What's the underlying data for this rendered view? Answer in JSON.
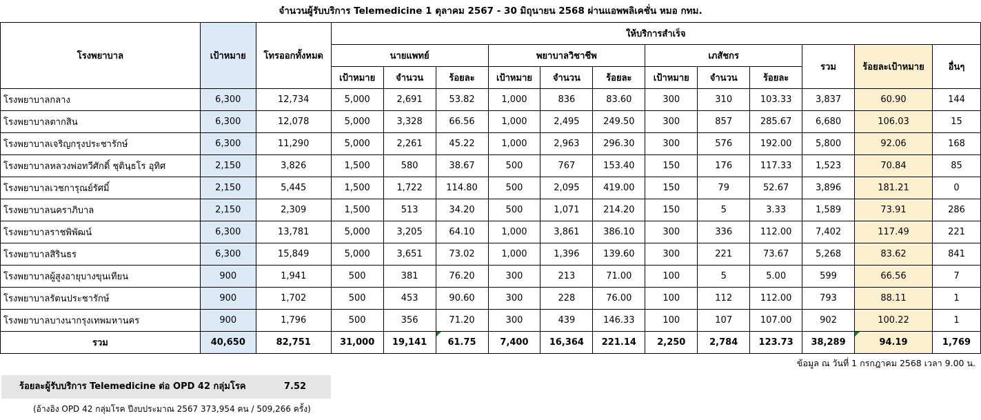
{
  "title": "จำนวนผู้รับบริการ Telemedicine 1 ตุลาคม 2567 - 30 มิถุนายน 2568 ผ่านแอพพลิเคชั่น หมอ กทม.",
  "headers": {
    "hospital": "โรงพยาบาล",
    "target": "เป้าหมาย",
    "total_calls": "โทรออกทั้งหมด",
    "success": "ให้บริการสำเร็จ",
    "doctor": "นายแพทย์",
    "nurse": "พยาบาลวิชาชีพ",
    "pharmacist": "เภสัชกร",
    "sub_target": "เป้าหมาย",
    "sub_count": "จำนวน",
    "sub_percent": "ร้อยละ",
    "sum": "รวม",
    "percent_target": "ร้อยละเป้าหมาย",
    "others": "อื่นๆ"
  },
  "rows": [
    [
      "โรงพยาบาลกลาง",
      "6,300",
      "12,734",
      "5,000",
      "2,691",
      "53.82",
      "1,000",
      "836",
      "83.60",
      "300",
      "310",
      "103.33",
      "3,837",
      "60.90",
      "144"
    ],
    [
      "โรงพยาบาลตากสิน",
      "6,300",
      "12,078",
      "5,000",
      "3,328",
      "66.56",
      "1,000",
      "2,495",
      "249.50",
      "300",
      "857",
      "285.67",
      "6,680",
      "106.03",
      "15"
    ],
    [
      "โรงพยาบาลเจริญกรุงประชารักษ์",
      "6,300",
      "11,290",
      "5,000",
      "2,261",
      "45.22",
      "1,000",
      "2,963",
      "296.30",
      "300",
      "576",
      "192.00",
      "5,800",
      "92.06",
      "168"
    ],
    [
      "โรงพยาบาลหลวงพ่อทวีศักดิ์ ชุตินฺธโร อุทิศ",
      "2,150",
      "3,826",
      "1,500",
      "580",
      "38.67",
      "500",
      "767",
      "153.40",
      "150",
      "176",
      "117.33",
      "1,523",
      "70.84",
      "85"
    ],
    [
      "โรงพยาบาลเวชการุณย์รัศมิ์",
      "2,150",
      "5,445",
      "1,500",
      "1,722",
      "114.80",
      "500",
      "2,095",
      "419.00",
      "150",
      "79",
      "52.67",
      "3,896",
      "181.21",
      "0"
    ],
    [
      "โรงพยาบาลนคราภิบาล",
      "2,150",
      "2,309",
      "1,500",
      "513",
      "34.20",
      "500",
      "1,071",
      "214.20",
      "150",
      "5",
      "3.33",
      "1,589",
      "73.91",
      "286"
    ],
    [
      "โรงพยาบาลราชพิพัฒน์",
      "6,300",
      "13,781",
      "5,000",
      "3,205",
      "64.10",
      "1,000",
      "3,861",
      "386.10",
      "300",
      "336",
      "112.00",
      "7,402",
      "117.49",
      "221"
    ],
    [
      "โรงพยาบาลสิรินธร",
      "6,300",
      "15,849",
      "5,000",
      "3,651",
      "73.02",
      "1,000",
      "1,396",
      "139.60",
      "300",
      "221",
      "73.67",
      "5,268",
      "83.62",
      "841"
    ],
    [
      "โรงพยาบาลผู้สูงอายุบางขุนเทียน",
      "900",
      "1,941",
      "500",
      "381",
      "76.20",
      "300",
      "213",
      "71.00",
      "100",
      "5",
      "5.00",
      "599",
      "66.56",
      "7"
    ],
    [
      "โรงพยาบาลรัตนประชารักษ์",
      "900",
      "1,702",
      "500",
      "453",
      "90.60",
      "300",
      "228",
      "76.00",
      "100",
      "112",
      "112.00",
      "793",
      "88.11",
      "1"
    ],
    [
      "โรงพยาบาลบางนากรุงเทพมหานคร",
      "900",
      "1,796",
      "500",
      "356",
      "71.20",
      "300",
      "439",
      "146.33",
      "100",
      "107",
      "107.00",
      "902",
      "100.22",
      "1"
    ]
  ],
  "total": [
    "รวม",
    "40,650",
    "82,751",
    "31,000",
    "19,141",
    "61.75",
    "7,400",
    "16,364",
    "221.14",
    "2,250",
    "2,784",
    "123.73",
    "38,289",
    "94.19",
    "1,769"
  ],
  "footnote": "ข้อมูล ณ วันที่ 1 กรกฎาคม 2568 เวลา 9.00 น.",
  "summary": {
    "label": "ร้อยละผู้รับบริการ Telemedicine ต่อ OPD 42 กลุ่มโรค",
    "value": "7.52"
  },
  "reference": "(อ้างอิง OPD 42 กลุ่มโรค ปีงบประมาณ 2567 373,954 คน / 509,266 ครั้ง)",
  "colors": {
    "target_column": "#dce9f7",
    "percent_target_column": "#fdf0cf",
    "error_marker": "#1f7a2e"
  }
}
